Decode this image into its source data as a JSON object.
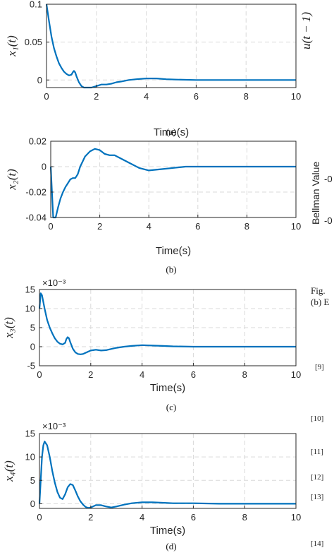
{
  "chart_data": [
    {
      "type": "line",
      "caption": "(a)",
      "xlabel": "Time(s)",
      "ylabel": "x₁(t)",
      "multiplier": "",
      "xlim": [
        0,
        10
      ],
      "ylim": [
        -0.01,
        0.1
      ],
      "xticks": [
        0,
        2,
        4,
        6,
        8,
        10
      ],
      "yticks": [
        -0.01,
        0,
        0.05,
        0.1
      ],
      "ytick_labels": [
        "",
        "0",
        "0.05",
        "0.1"
      ],
      "grid": true,
      "series": [
        {
          "color": "#0072bd",
          "x": [
            0,
            0.1,
            0.2,
            0.3,
            0.4,
            0.5,
            0.6,
            0.7,
            0.8,
            0.9,
            1.0,
            1.05,
            1.1,
            1.15,
            1.2,
            1.3,
            1.4,
            1.5,
            1.6,
            1.7,
            1.8,
            2.0,
            2.2,
            2.4,
            2.6,
            2.8,
            3.0,
            3.3,
            3.6,
            4.0,
            4.4,
            4.8,
            5.2,
            6,
            7,
            8,
            9,
            10
          ],
          "y": [
            0.1,
            0.078,
            0.057,
            0.042,
            0.031,
            0.022,
            0.016,
            0.011,
            0.008,
            0.006,
            0.007,
            0.01,
            0.012,
            0.01,
            0.005,
            -0.003,
            -0.008,
            -0.01,
            -0.011,
            -0.011,
            -0.01,
            -0.008,
            -0.006,
            -0.006,
            -0.005,
            -0.003,
            -0.002,
            0,
            0.001,
            0.002,
            0.002,
            0.001,
            0.0005,
            0,
            0,
            0,
            0,
            0
          ]
        }
      ]
    },
    {
      "type": "line",
      "caption": "(b)",
      "xlabel": "Time(s)",
      "ylabel": "x₂(t)",
      "multiplier": "",
      "xlim": [
        0,
        10
      ],
      "ylim": [
        -0.04,
        0.02
      ],
      "xticks": [
        0,
        2,
        4,
        6,
        8,
        10
      ],
      "yticks": [
        -0.04,
        -0.02,
        0,
        0.02
      ],
      "ytick_labels": [
        "-0.04",
        "-0.02",
        "0",
        "0.02"
      ],
      "grid": true,
      "series": [
        {
          "color": "#0072bd",
          "x": [
            0,
            0.1,
            0.2,
            0.3,
            0.4,
            0.5,
            0.6,
            0.7,
            0.8,
            0.9,
            1.0,
            1.1,
            1.2,
            1.4,
            1.6,
            1.8,
            2.0,
            2.2,
            2.4,
            2.6,
            2.8,
            3.0,
            3.3,
            3.6,
            4.0,
            4.5,
            5,
            5.5,
            6,
            7,
            8,
            9,
            10
          ],
          "y": [
            0.0,
            -0.04,
            -0.04,
            -0.032,
            -0.025,
            -0.02,
            -0.016,
            -0.013,
            -0.01,
            -0.009,
            -0.009,
            -0.006,
            0.0,
            0.008,
            0.012,
            0.014,
            0.013,
            0.01,
            0.009,
            0.009,
            0.007,
            0.005,
            0.002,
            -0.001,
            -0.003,
            -0.002,
            -0.001,
            0,
            0,
            0,
            0,
            0,
            0
          ]
        }
      ]
    },
    {
      "type": "line",
      "caption": "(c)",
      "xlabel": "Time(s)",
      "ylabel": "x₃(t)",
      "multiplier": "×10⁻³",
      "xlim": [
        0,
        10
      ],
      "ylim": [
        -5,
        15
      ],
      "xticks": [
        0,
        2,
        4,
        6,
        8,
        10
      ],
      "yticks": [
        -5,
        0,
        5,
        10,
        15
      ],
      "ytick_labels": [
        "-5",
        "0",
        "5",
        "10",
        "15"
      ],
      "grid": true,
      "series": [
        {
          "color": "#0072bd",
          "x": [
            0,
            0.05,
            0.1,
            0.2,
            0.3,
            0.4,
            0.5,
            0.6,
            0.7,
            0.8,
            0.9,
            1.0,
            1.05,
            1.1,
            1.15,
            1.2,
            1.3,
            1.4,
            1.5,
            1.6,
            1.7,
            1.8,
            2.0,
            2.2,
            2.4,
            2.6,
            2.8,
            3.0,
            3.3,
            3.6,
            4.0,
            4.4,
            4.8,
            5.2,
            6,
            7,
            8,
            9,
            10
          ],
          "y": [
            10,
            14,
            13.5,
            10,
            7,
            5,
            3.5,
            2.2,
            1.3,
            0.8,
            0.6,
            1.0,
            2.0,
            2.5,
            2.2,
            1.2,
            -0.5,
            -1.5,
            -1.9,
            -2.0,
            -1.9,
            -1.6,
            -1.0,
            -0.8,
            -1.0,
            -0.9,
            -0.6,
            -0.3,
            0.0,
            0.2,
            0.4,
            0.3,
            0.2,
            0.1,
            0,
            0,
            0,
            0,
            0
          ]
        }
      ]
    },
    {
      "type": "line",
      "caption": "(d)",
      "xlabel": "Time(s)",
      "ylabel": "x₄(t)",
      "multiplier": "×10⁻³",
      "xlim": [
        0,
        10
      ],
      "ylim": [
        -1,
        15
      ],
      "xticks": [
        0,
        2,
        4,
        6,
        8,
        10
      ],
      "yticks": [
        0,
        5,
        10,
        15
      ],
      "ytick_labels": [
        "0",
        "5",
        "10",
        "15"
      ],
      "grid": true,
      "series": [
        {
          "color": "#0072bd",
          "x": [
            0,
            0.05,
            0.1,
            0.15,
            0.2,
            0.3,
            0.4,
            0.5,
            0.6,
            0.7,
            0.8,
            0.9,
            1.0,
            1.1,
            1.2,
            1.3,
            1.4,
            1.5,
            1.6,
            1.7,
            1.8,
            1.9,
            2.0,
            2.2,
            2.4,
            2.6,
            2.8,
            3.0,
            3.3,
            3.6,
            4.0,
            4.4,
            4.8,
            5.2,
            6,
            7,
            8,
            9,
            10
          ],
          "y": [
            0,
            5,
            10,
            12.5,
            13.3,
            12.5,
            10,
            7,
            4.5,
            2.5,
            1.3,
            1.0,
            2.0,
            3.5,
            4.2,
            4.0,
            2.8,
            1.5,
            0.5,
            -0.2,
            -0.7,
            -0.9,
            -0.8,
            -0.3,
            -0.3,
            -0.6,
            -0.8,
            -0.6,
            -0.2,
            0.1,
            0.3,
            0.3,
            0.2,
            0.1,
            0.1,
            0,
            0,
            0,
            0
          ]
        }
      ]
    }
  ],
  "side_fragments": {
    "ylabel_u": "u(t − 1)",
    "bellman": "Bellman Value",
    "neg_tick_1": "-0",
    "neg_tick_2": "-0",
    "fig_label": "Fig.",
    "fig_b": "(b) E",
    "refs": [
      "[9]",
      "[10]",
      "[11]",
      "[12]",
      "[13]",
      "[14]"
    ]
  }
}
